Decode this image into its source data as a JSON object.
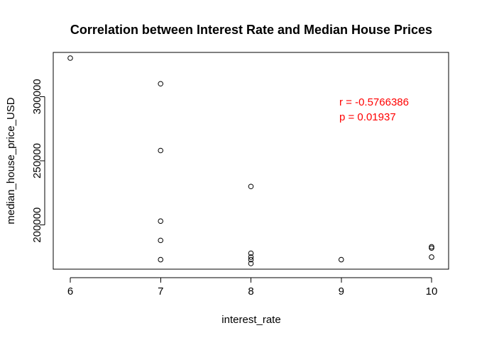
{
  "chart_data": {
    "type": "scatter",
    "title": "Correlation between Interest Rate and Median House Prices",
    "xlabel": "interest_rate",
    "ylabel": "median_house_price_USD",
    "xlim": [
      6,
      10
    ],
    "ylim": [
      170000,
      330000
    ],
    "x_ticks": [
      6,
      7,
      8,
      9,
      10
    ],
    "x_tick_labels": [
      "6",
      "7",
      "8",
      "9",
      "10"
    ],
    "y_ticks": [
      200000,
      250000,
      300000
    ],
    "y_tick_labels": [
      "200000",
      "250000",
      "300000"
    ],
    "grid": false,
    "legend": "none",
    "points": [
      {
        "x": 6,
        "y": 330000
      },
      {
        "x": 7,
        "y": 310000
      },
      {
        "x": 7,
        "y": 258000
      },
      {
        "x": 7,
        "y": 203000
      },
      {
        "x": 7,
        "y": 188000
      },
      {
        "x": 7,
        "y": 173000
      },
      {
        "x": 8,
        "y": 230000
      },
      {
        "x": 8,
        "y": 178000
      },
      {
        "x": 8,
        "y": 175000
      },
      {
        "x": 8,
        "y": 173000
      },
      {
        "x": 8,
        "y": 170000
      },
      {
        "x": 9,
        "y": 173000
      },
      {
        "x": 10,
        "y": 183000
      },
      {
        "x": 10,
        "y": 182000
      },
      {
        "x": 10,
        "y": 175000
      }
    ],
    "annotations": [
      "r = -0.5766386",
      "p = 0.01937"
    ],
    "annotation_color": "#ff0000",
    "point_color": "#000000",
    "axis_color": "#000000"
  }
}
